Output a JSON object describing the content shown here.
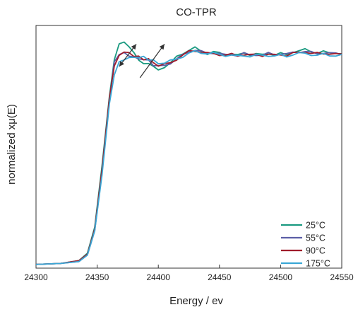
{
  "chart_data": {
    "type": "line",
    "title": "CO-TPR",
    "xlabel": "Energy / ev",
    "ylabel": "normalized xμ(E)",
    "xlim": [
      24300,
      24550
    ],
    "ylim": [
      0,
      1.3
    ],
    "x_ticks": [
      24300,
      24350,
      24400,
      24450,
      24500,
      24550
    ],
    "x_tick_labels": [
      "24300",
      "24350",
      "24400",
      "24450",
      "24500",
      "24550"
    ],
    "y_tick_labels_shown": false,
    "grid": false,
    "legend_position": "bottom-right",
    "series": [
      {
        "name": "25°C",
        "color": "#1a9a80",
        "points": [
          [
            24300,
            0.02
          ],
          [
            24320,
            0.025
          ],
          [
            24335,
            0.04
          ],
          [
            24342,
            0.08
          ],
          [
            24348,
            0.22
          ],
          [
            24354,
            0.55
          ],
          [
            24360,
            0.92
          ],
          [
            24364,
            1.12
          ],
          [
            24368,
            1.2
          ],
          [
            24372,
            1.21
          ],
          [
            24376,
            1.19
          ],
          [
            24380,
            1.15
          ],
          [
            24384,
            1.12
          ],
          [
            24388,
            1.09
          ],
          [
            24392,
            1.1
          ],
          [
            24396,
            1.08
          ],
          [
            24400,
            1.06
          ],
          [
            24405,
            1.08
          ],
          [
            24410,
            1.1
          ],
          [
            24415,
            1.13
          ],
          [
            24420,
            1.15
          ],
          [
            24425,
            1.17
          ],
          [
            24430,
            1.18
          ],
          [
            24435,
            1.16
          ],
          [
            24440,
            1.15
          ],
          [
            24445,
            1.16
          ],
          [
            24450,
            1.15
          ],
          [
            24455,
            1.14
          ],
          [
            24460,
            1.15
          ],
          [
            24465,
            1.14
          ],
          [
            24470,
            1.15
          ],
          [
            24475,
            1.145
          ],
          [
            24480,
            1.15
          ],
          [
            24485,
            1.14
          ],
          [
            24490,
            1.15
          ],
          [
            24495,
            1.145
          ],
          [
            24500,
            1.15
          ],
          [
            24505,
            1.14
          ],
          [
            24510,
            1.16
          ],
          [
            24515,
            1.165
          ],
          [
            24520,
            1.17
          ],
          [
            24525,
            1.16
          ],
          [
            24530,
            1.155
          ],
          [
            24535,
            1.16
          ],
          [
            24540,
            1.15
          ],
          [
            24545,
            1.155
          ],
          [
            24550,
            1.15
          ]
        ]
      },
      {
        "name": "55°C",
        "color": "#5b5ea6",
        "points": [
          [
            24300,
            0.02
          ],
          [
            24320,
            0.025
          ],
          [
            24335,
            0.035
          ],
          [
            24342,
            0.07
          ],
          [
            24348,
            0.2
          ],
          [
            24354,
            0.52
          ],
          [
            24360,
            0.9
          ],
          [
            24364,
            1.1
          ],
          [
            24368,
            1.15
          ],
          [
            24372,
            1.15
          ],
          [
            24376,
            1.14
          ],
          [
            24380,
            1.13
          ],
          [
            24384,
            1.12
          ],
          [
            24388,
            1.12
          ],
          [
            24392,
            1.11
          ],
          [
            24396,
            1.09
          ],
          [
            24400,
            1.08
          ],
          [
            24405,
            1.085
          ],
          [
            24410,
            1.1
          ],
          [
            24415,
            1.12
          ],
          [
            24420,
            1.14
          ],
          [
            24425,
            1.16
          ],
          [
            24430,
            1.17
          ],
          [
            24435,
            1.16
          ],
          [
            24440,
            1.15
          ],
          [
            24445,
            1.155
          ],
          [
            24450,
            1.15
          ],
          [
            24455,
            1.14
          ],
          [
            24460,
            1.145
          ],
          [
            24465,
            1.14
          ],
          [
            24470,
            1.15
          ],
          [
            24475,
            1.14
          ],
          [
            24480,
            1.145
          ],
          [
            24485,
            1.14
          ],
          [
            24490,
            1.15
          ],
          [
            24495,
            1.145
          ],
          [
            24500,
            1.15
          ],
          [
            24505,
            1.145
          ],
          [
            24510,
            1.155
          ],
          [
            24515,
            1.16
          ],
          [
            24520,
            1.16
          ],
          [
            24525,
            1.155
          ],
          [
            24530,
            1.15
          ],
          [
            24535,
            1.155
          ],
          [
            24540,
            1.15
          ],
          [
            24545,
            1.15
          ],
          [
            24550,
            1.15
          ]
        ]
      },
      {
        "name": "90°C",
        "color": "#a01c2c",
        "points": [
          [
            24300,
            0.02
          ],
          [
            24320,
            0.025
          ],
          [
            24335,
            0.04
          ],
          [
            24342,
            0.075
          ],
          [
            24348,
            0.21
          ],
          [
            24354,
            0.53
          ],
          [
            24360,
            0.91
          ],
          [
            24364,
            1.08
          ],
          [
            24368,
            1.14
          ],
          [
            24372,
            1.16
          ],
          [
            24376,
            1.15
          ],
          [
            24380,
            1.14
          ],
          [
            24384,
            1.13
          ],
          [
            24388,
            1.12
          ],
          [
            24392,
            1.12
          ],
          [
            24396,
            1.1
          ],
          [
            24400,
            1.085
          ],
          [
            24405,
            1.09
          ],
          [
            24410,
            1.1
          ],
          [
            24415,
            1.12
          ],
          [
            24420,
            1.14
          ],
          [
            24425,
            1.16
          ],
          [
            24430,
            1.165
          ],
          [
            24435,
            1.16
          ],
          [
            24440,
            1.15
          ],
          [
            24445,
            1.15
          ],
          [
            24450,
            1.145
          ],
          [
            24455,
            1.14
          ],
          [
            24460,
            1.145
          ],
          [
            24465,
            1.14
          ],
          [
            24470,
            1.145
          ],
          [
            24475,
            1.14
          ],
          [
            24480,
            1.145
          ],
          [
            24485,
            1.14
          ],
          [
            24490,
            1.145
          ],
          [
            24495,
            1.14
          ],
          [
            24500,
            1.145
          ],
          [
            24505,
            1.14
          ],
          [
            24510,
            1.15
          ],
          [
            24515,
            1.155
          ],
          [
            24520,
            1.16
          ],
          [
            24525,
            1.15
          ],
          [
            24530,
            1.15
          ],
          [
            24535,
            1.15
          ],
          [
            24540,
            1.15
          ],
          [
            24545,
            1.145
          ],
          [
            24550,
            1.145
          ]
        ]
      },
      {
        "name": "175°C",
        "color": "#3aa7d6",
        "points": [
          [
            24300,
            0.02
          ],
          [
            24320,
            0.025
          ],
          [
            24335,
            0.035
          ],
          [
            24342,
            0.07
          ],
          [
            24348,
            0.2
          ],
          [
            24354,
            0.5
          ],
          [
            24360,
            0.88
          ],
          [
            24364,
            1.04
          ],
          [
            24368,
            1.1
          ],
          [
            24372,
            1.12
          ],
          [
            24376,
            1.125
          ],
          [
            24380,
            1.13
          ],
          [
            24384,
            1.13
          ],
          [
            24388,
            1.13
          ],
          [
            24392,
            1.12
          ],
          [
            24396,
            1.11
          ],
          [
            24400,
            1.1
          ],
          [
            24405,
            1.1
          ],
          [
            24410,
            1.11
          ],
          [
            24415,
            1.12
          ],
          [
            24420,
            1.135
          ],
          [
            24425,
            1.15
          ],
          [
            24430,
            1.16
          ],
          [
            24435,
            1.155
          ],
          [
            24440,
            1.15
          ],
          [
            24445,
            1.15
          ],
          [
            24450,
            1.145
          ],
          [
            24455,
            1.14
          ],
          [
            24460,
            1.14
          ],
          [
            24465,
            1.135
          ],
          [
            24470,
            1.14
          ],
          [
            24475,
            1.135
          ],
          [
            24480,
            1.14
          ],
          [
            24485,
            1.14
          ],
          [
            24490,
            1.14
          ],
          [
            24495,
            1.135
          ],
          [
            24500,
            1.14
          ],
          [
            24505,
            1.135
          ],
          [
            24510,
            1.145
          ],
          [
            24515,
            1.15
          ],
          [
            24520,
            1.15
          ],
          [
            24525,
            1.145
          ],
          [
            24530,
            1.14
          ],
          [
            24535,
            1.145
          ],
          [
            24540,
            1.14
          ],
          [
            24545,
            1.14
          ],
          [
            24550,
            1.14
          ]
        ]
      }
    ],
    "annotations": [
      {
        "type": "double-arrow",
        "from": [
          24368,
          1.08
        ],
        "to": [
          24382,
          1.2
        ]
      },
      {
        "type": "arrow",
        "from": [
          24385,
          1.02
        ],
        "to": [
          24405,
          1.2
        ]
      }
    ]
  }
}
